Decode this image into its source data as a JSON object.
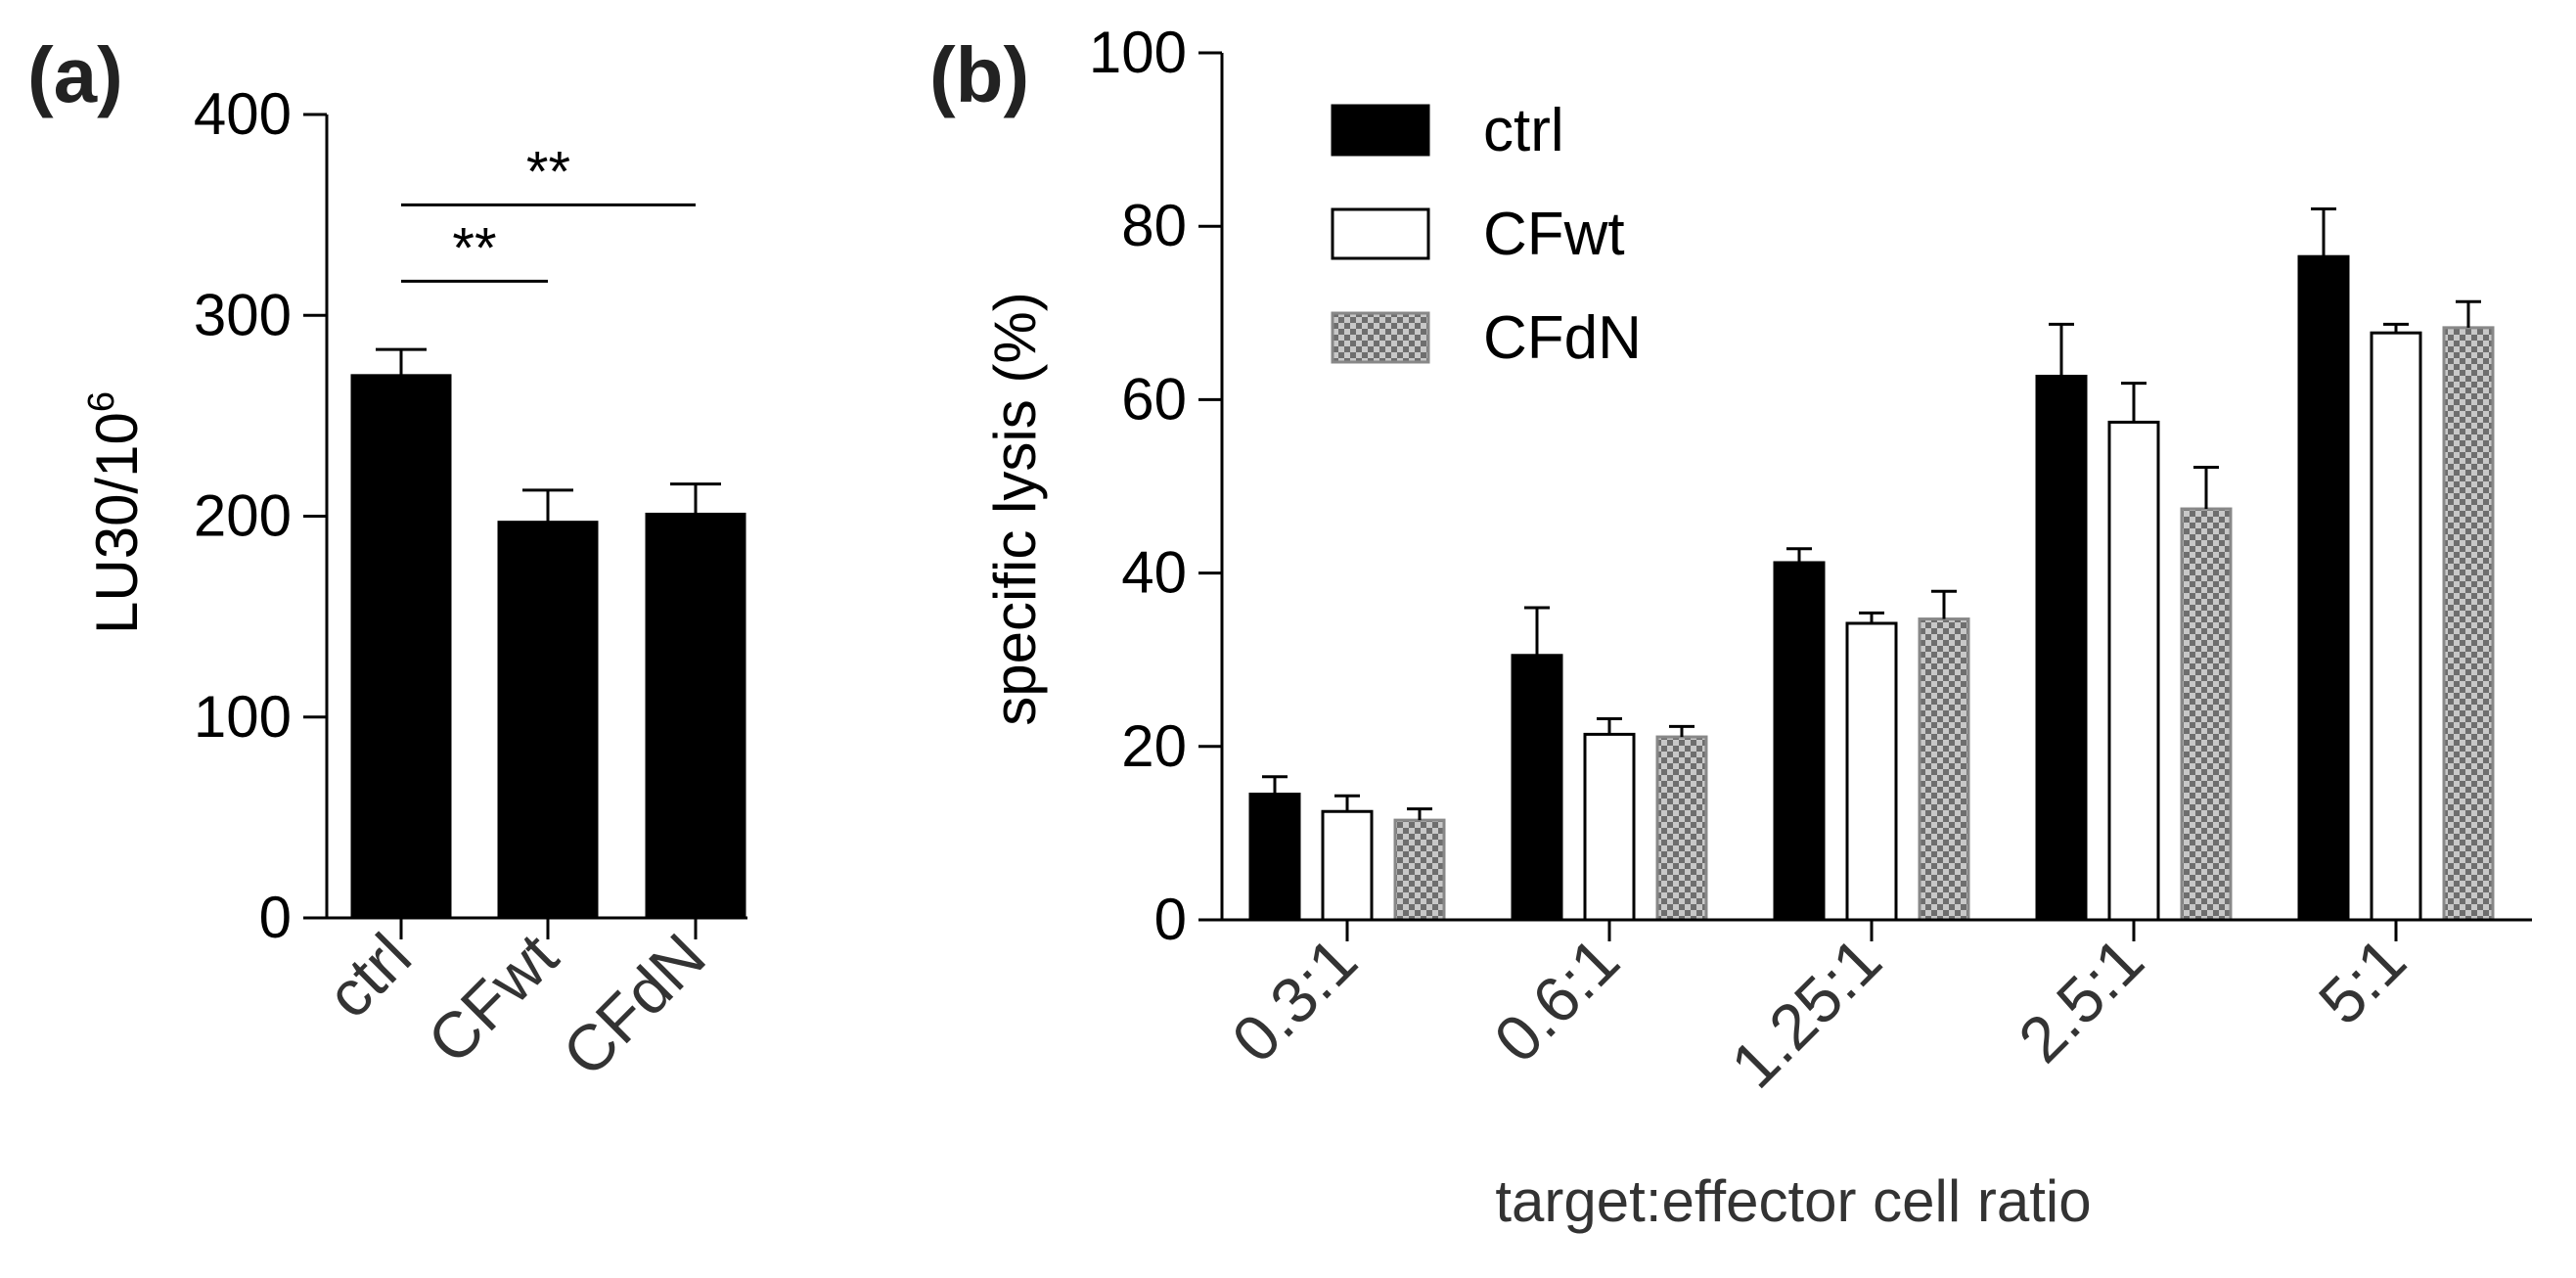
{
  "colors": {
    "ctrl": "#000000",
    "CFwt": "#ffffff",
    "CFdN_a": "#000000",
    "CFdN_b": "#c8c8c8",
    "axis": "#000000",
    "xlabel": "#333333"
  },
  "chart_data": [
    {
      "panel_label": "(a)",
      "type": "bar",
      "categories": [
        "ctrl",
        "CFwt",
        "CFdN"
      ],
      "values": [
        270,
        197,
        201
      ],
      "errors": [
        13,
        16,
        15
      ],
      "ylabel_base": "LU30/10",
      "ylabel_sup": "6",
      "ylim": [
        0,
        400
      ],
      "yticks": [
        0,
        100,
        200,
        300,
        400
      ],
      "significance": [
        {
          "from": 0,
          "to": 1,
          "y": 317,
          "label": "**"
        },
        {
          "from": 0,
          "to": 2,
          "y": 355,
          "label": "**"
        }
      ]
    },
    {
      "panel_label": "(b)",
      "type": "bar",
      "categories": [
        "0.3:1",
        "0.6:1",
        "1.25:1",
        "2.5:1",
        "5:1"
      ],
      "series": [
        {
          "name": "ctrl",
          "values": [
            14.5,
            30.5,
            41.2,
            62.7,
            76.5
          ],
          "errors": [
            2.0,
            5.5,
            1.6,
            6.0,
            5.5
          ]
        },
        {
          "name": "CFwt",
          "values": [
            12.5,
            21.4,
            34.2,
            57.4,
            67.7
          ],
          "errors": [
            1.8,
            1.8,
            1.2,
            4.5,
            1.0
          ]
        },
        {
          "name": "CFdN",
          "values": [
            11.5,
            21.1,
            34.7,
            47.4,
            68.3
          ],
          "errors": [
            1.3,
            1.2,
            3.2,
            4.8,
            3.0
          ]
        }
      ],
      "xlabel": "target:effector cell ratio",
      "ylabel": "specific lysis (%)",
      "ylim": [
        0,
        100
      ],
      "yticks": [
        0,
        20,
        40,
        60,
        80,
        100
      ],
      "legend_position": "top-left"
    }
  ]
}
